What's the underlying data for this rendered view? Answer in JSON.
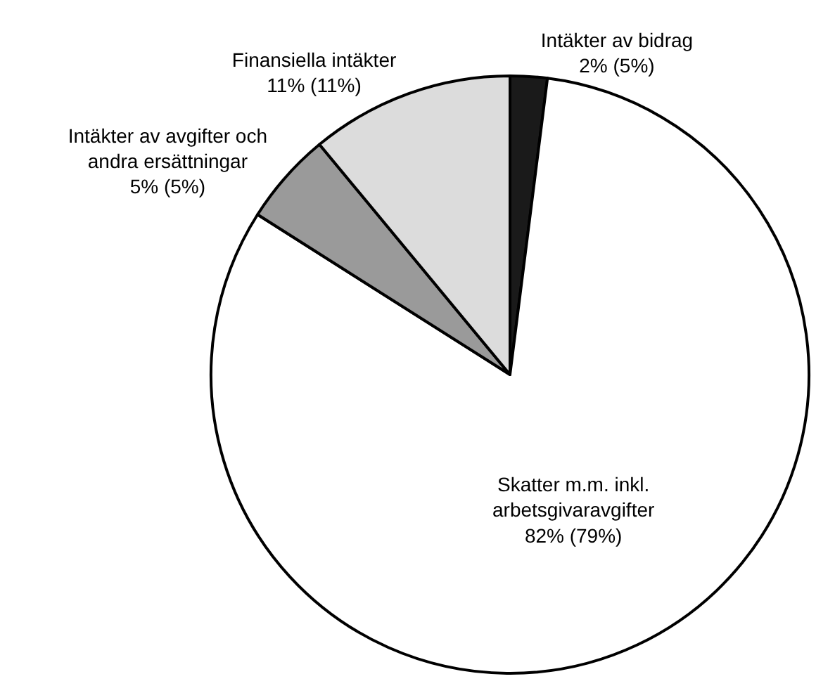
{
  "chart_data": {
    "type": "pie",
    "categories": [
      "Intäkter av bidrag",
      "Skatter m.m. inkl.\narbetsgivaravgifter",
      "Intäkter av avgifter och\nandra ersättningar",
      "Finansiella intäkter"
    ],
    "values": [
      2,
      82,
      5,
      11
    ],
    "value_labels": [
      "2% (5%)",
      "82% (79%)",
      "5% (5%)",
      "11% (11%)"
    ],
    "colors": [
      "#1a1a1a",
      "#ffffff",
      "#9a9a9a",
      "#dcdcdc"
    ],
    "legend": false
  }
}
